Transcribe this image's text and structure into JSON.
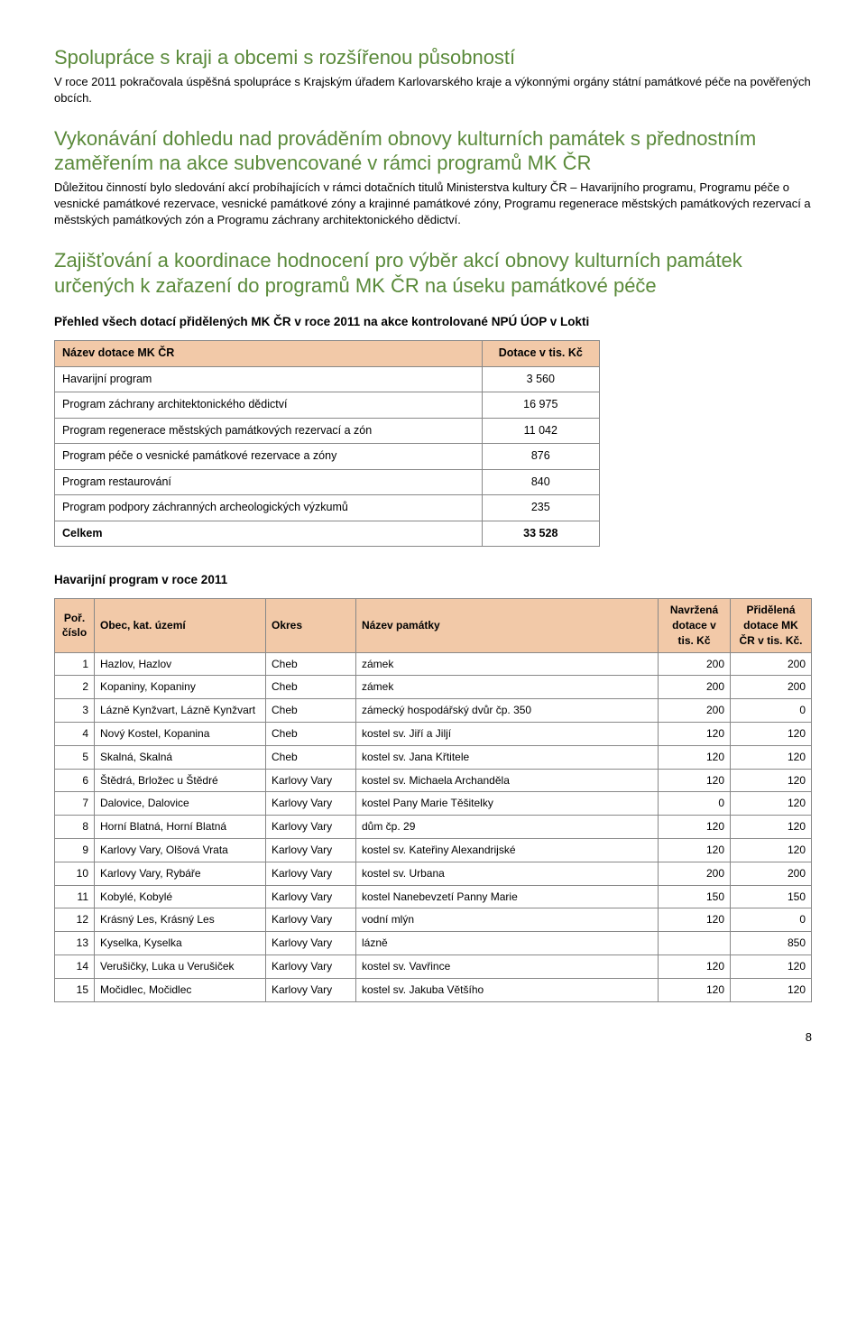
{
  "section1": {
    "title": "Spolupráce s kraji a obcemi s rozšířenou působností",
    "text": "V roce 2011 pokračovala úspěšná spolupráce s Krajským úřadem Karlovarského kraje a výkonnými orgány státní památkové péče na pověřených obcích."
  },
  "section2": {
    "title": "Vykonávání dohledu nad prováděním obnovy kulturních památek s přednostním zaměřením na akce subvencované v rámci programů MK ČR",
    "text": "Důležitou činností bylo sledování akcí probíhajících v rámci dotačních titulů Ministerstva kultury ČR – Havarijního programu, Programu péče o vesnické památkové rezervace, vesnické památkové zóny a krajinné památkové zóny, Programu regenerace městských památkových rezervací a městských památkových zón a Programu záchrany architektonického dědictví."
  },
  "section3": {
    "title": "Zajišťování a koordinace hodnocení pro výběr akcí obnovy kulturních památek určených k zařazení do programů MK ČR na úseku památkové péče"
  },
  "table1": {
    "caption": "Přehled všech dotací přidělených MK ČR v roce 2011 na akce kontrolované NPÚ ÚOP v Lokti",
    "head_name": "Název dotace MK ČR",
    "head_val": "Dotace v tis. Kč",
    "rows": [
      {
        "name": "Havarijní program",
        "val": "3 560"
      },
      {
        "name": "Program záchrany architektonického dědictví",
        "val": "16 975"
      },
      {
        "name": "Program regenerace městských památkových rezervací a zón",
        "val": "11 042"
      },
      {
        "name": "Program péče o vesnické památkové rezervace a zóny",
        "val": "876"
      },
      {
        "name": "Program restaurování",
        "val": "840"
      },
      {
        "name": "Program podpory záchranných archeologických výzkumů",
        "val": "235"
      }
    ],
    "total_name": "Celkem",
    "total_val": "33 528"
  },
  "table2": {
    "caption": "Havarijní program v roce 2011",
    "head": {
      "por": "Poř. číslo",
      "obec": "Obec, kat. území",
      "okres": "Okres",
      "nazev": "Název památky",
      "nav": "Navržená dotace v tis. Kč",
      "prid": "Přidělená dotace MK ČR v tis. Kč."
    },
    "rows": [
      {
        "n": "1",
        "obec": "Hazlov, Hazlov",
        "okres": "Cheb",
        "nazev": "zámek",
        "nav": "200",
        "prid": "200"
      },
      {
        "n": "2",
        "obec": "Kopaniny, Kopaniny",
        "okres": "Cheb",
        "nazev": "zámek",
        "nav": "200",
        "prid": "200"
      },
      {
        "n": "3",
        "obec": "Lázně Kynžvart, Lázně Kynžvart",
        "okres": "Cheb",
        "nazev": "zámecký hospodářský dvůr čp. 350",
        "nav": "200",
        "prid": "0"
      },
      {
        "n": "4",
        "obec": "Nový Kostel, Kopanina",
        "okres": "Cheb",
        "nazev": "kostel sv. Jiří a Jiljí",
        "nav": "120",
        "prid": "120"
      },
      {
        "n": "5",
        "obec": "Skalná, Skalná",
        "okres": "Cheb",
        "nazev": "kostel sv. Jana Křtitele",
        "nav": "120",
        "prid": "120"
      },
      {
        "n": "6",
        "obec": "Štědrá, Brložec u Štědré",
        "okres": "Karlovy Vary",
        "nazev": "kostel sv. Michaela Archanděla",
        "nav": "120",
        "prid": "120"
      },
      {
        "n": "7",
        "obec": "Dalovice, Dalovice",
        "okres": "Karlovy Vary",
        "nazev": "kostel Pany Marie Těšitelky",
        "nav": "0",
        "prid": "120"
      },
      {
        "n": "8",
        "obec": "Horní Blatná, Horní Blatná",
        "okres": "Karlovy Vary",
        "nazev": "dům čp. 29",
        "nav": "120",
        "prid": "120"
      },
      {
        "n": "9",
        "obec": "Karlovy Vary, Olšová Vrata",
        "okres": "Karlovy Vary",
        "nazev": "kostel sv. Kateřiny Alexandrijské",
        "nav": "120",
        "prid": "120"
      },
      {
        "n": "10",
        "obec": "Karlovy Vary, Rybáře",
        "okres": "Karlovy Vary",
        "nazev": "kostel sv. Urbana",
        "nav": "200",
        "prid": "200"
      },
      {
        "n": "11",
        "obec": "Kobylé, Kobylé",
        "okres": "Karlovy Vary",
        "nazev": "kostel Nanebevzetí Panny Marie",
        "nav": "150",
        "prid": "150"
      },
      {
        "n": "12",
        "obec": "Krásný Les, Krásný Les",
        "okres": "Karlovy Vary",
        "nazev": "vodní mlýn",
        "nav": "120",
        "prid": "0"
      },
      {
        "n": "13",
        "obec": "Kyselka, Kyselka",
        "okres": "Karlovy Vary",
        "nazev": "lázně",
        "nav": "",
        "prid": "850"
      },
      {
        "n": "14",
        "obec": "Verušičky, Luka u Verušiček",
        "okres": "Karlovy Vary",
        "nazev": "kostel sv. Vavřince",
        "nav": "120",
        "prid": "120"
      },
      {
        "n": "15",
        "obec": "Močidlec, Močidlec",
        "okres": "Karlovy Vary",
        "nazev": "kostel sv. Jakuba Většího",
        "nav": "120",
        "prid": "120"
      }
    ]
  },
  "page_number": "8"
}
